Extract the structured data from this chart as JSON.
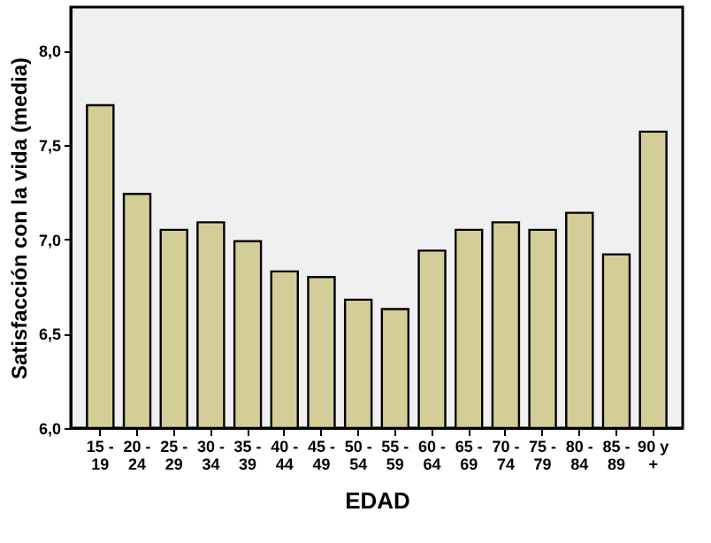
{
  "chart_data": {
    "type": "bar",
    "xlabel": "EDAD",
    "ylabel": "Satisfacción con la vida (media)",
    "categories": [
      "15 - 19",
      "20 - 24",
      "25 - 29",
      "30 - 34",
      "35 - 39",
      "40 - 44",
      "45 - 49",
      "50 - 54",
      "55 - 59",
      "60 - 64",
      "65 - 69",
      "70 - 74",
      "75 - 79",
      "80 - 84",
      "85 - 89",
      "90 y +"
    ],
    "values": [
      7.71,
      7.24,
      7.05,
      7.09,
      6.99,
      6.83,
      6.8,
      6.68,
      6.63,
      6.94,
      7.05,
      7.09,
      7.05,
      7.14,
      6.92,
      7.57
    ],
    "color": "#d3ce98",
    "ylim": [
      6.0,
      8.23
    ],
    "yticks": [
      {
        "value": 6.0,
        "label": "6,0"
      },
      {
        "value": 6.5,
        "label": "6,5"
      },
      {
        "value": 7.0,
        "label": "7,0"
      },
      {
        "value": 7.5,
        "label": "7,5"
      },
      {
        "value": 8.0,
        "label": "8,0"
      }
    ],
    "grid": false
  }
}
